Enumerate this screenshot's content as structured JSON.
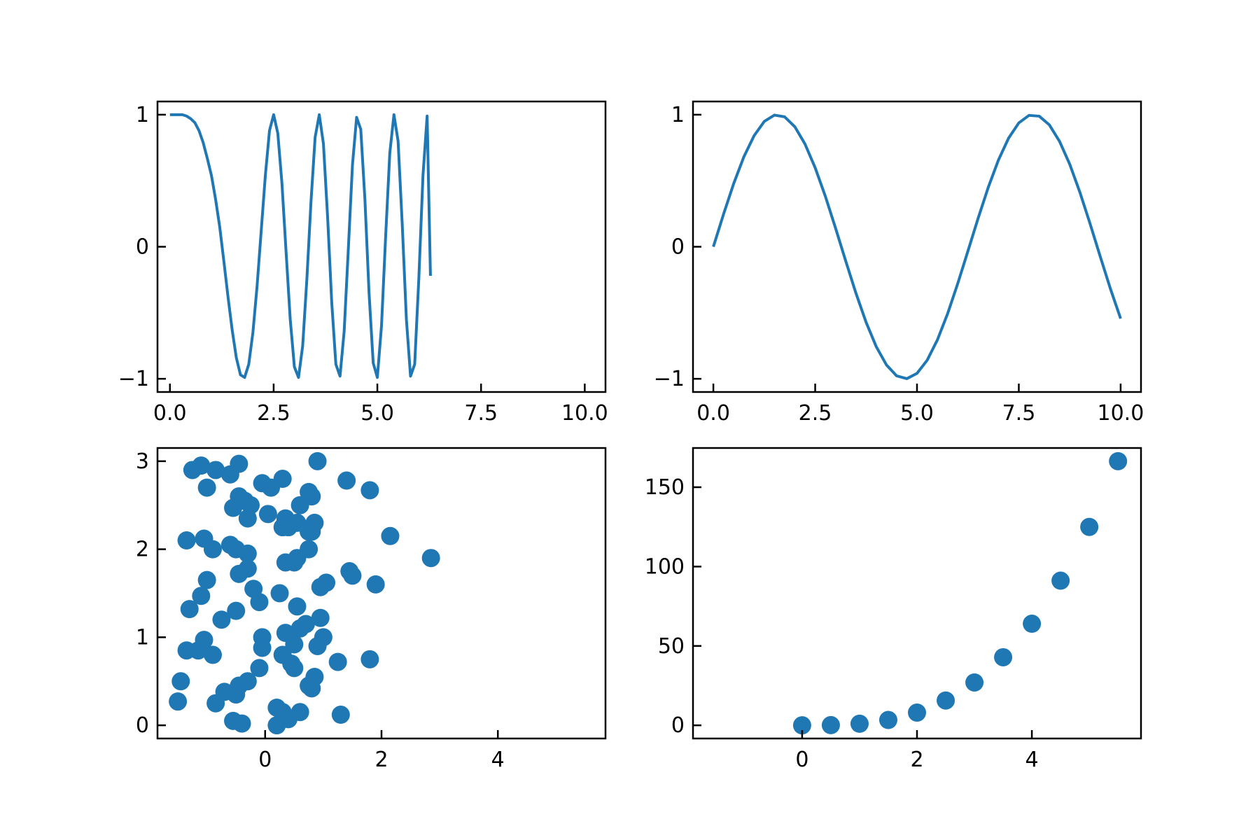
{
  "colors": {
    "series": "#1f77b4",
    "axes": "#000000",
    "background": "#ffffff"
  },
  "chart_data": [
    {
      "type": "line",
      "name_hint": "chirp",
      "x": [
        0,
        0.1,
        0.2,
        0.3,
        0.4,
        0.5,
        0.6,
        0.7,
        0.8,
        0.9,
        1.0,
        1.1,
        1.2,
        1.3,
        1.4,
        1.5,
        1.6,
        1.7,
        1.8,
        1.9,
        2.0,
        2.1,
        2.2,
        2.3,
        2.4,
        2.5,
        2.6,
        2.7,
        2.8,
        2.9,
        3.0,
        3.1,
        3.2,
        3.3,
        3.4,
        3.5,
        3.6,
        3.7,
        3.8,
        3.9,
        4.0,
        4.1,
        4.2,
        4.3,
        4.4,
        4.5,
        4.6,
        4.7,
        4.8,
        4.9,
        5.0,
        5.1,
        5.2,
        5.3,
        5.4,
        5.5,
        5.6,
        5.7,
        5.8,
        5.9,
        6.0,
        6.1,
        6.2,
        6.28
      ],
      "y": [
        1.0,
        1.0,
        1.0,
        1.0,
        0.99,
        0.97,
        0.94,
        0.88,
        0.79,
        0.67,
        0.54,
        0.36,
        0.15,
        -0.11,
        -0.38,
        -0.63,
        -0.84,
        -0.97,
        -0.99,
        -0.89,
        -0.65,
        -0.3,
        0.12,
        0.54,
        0.88,
        1.0,
        0.86,
        0.48,
        -0.04,
        -0.55,
        -0.91,
        -0.99,
        -0.75,
        -0.25,
        0.34,
        0.83,
        1.0,
        0.78,
        0.23,
        -0.42,
        -0.89,
        -0.98,
        -0.64,
        -0.02,
        0.62,
        0.98,
        0.89,
        0.36,
        -0.35,
        -0.88,
        -0.99,
        -0.6,
        0.08,
        0.71,
        1.0,
        0.8,
        0.17,
        -0.55,
        -0.98,
        -0.89,
        -0.24,
        0.54,
        0.99,
        -0.22
      ],
      "xlim": [
        -0.3,
        10.5
      ],
      "ylim": [
        -1.1,
        1.1
      ],
      "xticks": [
        0,
        2.5,
        5,
        7.5,
        10
      ],
      "xticklabels": [
        "0.0",
        "2.5",
        "5.0",
        "7.5",
        "10.0"
      ],
      "yticks": [
        -1,
        0,
        1
      ],
      "yticklabels": [
        "−1",
        "0",
        "1"
      ],
      "grid": false
    },
    {
      "type": "line",
      "name_hint": "sine",
      "x": [
        0,
        0.25,
        0.5,
        0.75,
        1.0,
        1.25,
        1.5,
        1.75,
        2.0,
        2.25,
        2.5,
        2.75,
        3.0,
        3.25,
        3.5,
        3.75,
        4.0,
        4.25,
        4.5,
        4.75,
        5.0,
        5.25,
        5.5,
        5.75,
        6.0,
        6.25,
        6.5,
        6.75,
        7.0,
        7.25,
        7.5,
        7.75,
        8.0,
        8.25,
        8.5,
        8.75,
        9.0,
        9.25,
        9.5,
        9.75,
        10.0
      ],
      "y": [
        0,
        0.247,
        0.479,
        0.682,
        0.841,
        0.949,
        0.997,
        0.984,
        0.909,
        0.778,
        0.598,
        0.382,
        0.141,
        -0.108,
        -0.351,
        -0.572,
        -0.757,
        -0.895,
        -0.978,
        -0.999,
        -0.959,
        -0.859,
        -0.706,
        -0.508,
        -0.279,
        -0.033,
        0.215,
        0.45,
        0.657,
        0.823,
        0.938,
        0.995,
        0.989,
        0.923,
        0.798,
        0.625,
        0.412,
        0.174,
        -0.075,
        -0.319,
        -0.544
      ],
      "xlim": [
        -0.5,
        10.5
      ],
      "ylim": [
        -1.1,
        1.1
      ],
      "xticks": [
        0,
        2.5,
        5,
        7.5,
        10
      ],
      "xticklabels": [
        "0.0",
        "2.5",
        "5.0",
        "7.5",
        "10.0"
      ],
      "yticks": [
        -1,
        0,
        1
      ],
      "yticklabels": [
        "−1",
        "0",
        "1"
      ],
      "grid": false
    },
    {
      "type": "scatter",
      "x": [
        -1.25,
        -1.1,
        -0.85,
        -0.6,
        -0.45,
        -0.35,
        -0.05,
        0.1,
        0.3,
        0.35,
        0.6,
        0.8,
        0.9,
        1.4,
        1.8,
        -1.0,
        -0.55,
        0.05,
        0.4,
        0.55,
        0.75,
        -0.25,
        -0.45,
        -0.3,
        0.3,
        0.75,
        0.85,
        0.8,
        2.15,
        -1.35,
        -1.05,
        -0.9,
        -0.6,
        -0.5,
        -0.3,
        0.35,
        0.55,
        0.75,
        0.5,
        2.85,
        -1.0,
        -1.1,
        -1.3,
        -0.45,
        -0.3,
        0.25,
        -0.2,
        -0.1,
        0.95,
        1.05,
        1.45,
        1.5,
        1.9,
        -0.75,
        -0.5,
        0.55,
        0.6,
        0.7,
        0.35,
        0.5,
        0.95,
        -1.15,
        -1.35,
        -0.9,
        -0.05,
        -0.05,
        0.3,
        0.45,
        0.5,
        1.0,
        0.9,
        1.25,
        1.8,
        -0.1,
        -0.3,
        -0.45,
        -0.7,
        -1.45,
        -1.5,
        -0.85,
        0.8,
        0.85,
        0.75,
        -0.5,
        -0.55,
        0.2,
        0.3,
        0.6,
        1.3,
        0.2,
        0.4,
        -0.4,
        -1.05
      ],
      "y": [
        2.9,
        2.95,
        2.9,
        2.85,
        2.97,
        2.55,
        2.75,
        2.7,
        2.8,
        2.35,
        2.5,
        2.6,
        3.0,
        2.78,
        2.67,
        2.7,
        2.47,
        2.4,
        2.25,
        2.3,
        2.65,
        2.5,
        2.6,
        2.35,
        2.25,
        2.2,
        2.3,
        2.2,
        2.15,
        2.1,
        2.12,
        2.0,
        2.05,
        2.0,
        1.95,
        1.85,
        1.9,
        2.0,
        1.85,
        1.9,
        1.65,
        1.47,
        1.32,
        1.72,
        1.78,
        1.5,
        1.55,
        1.4,
        1.57,
        1.62,
        1.75,
        1.7,
        1.6,
        1.2,
        1.3,
        1.35,
        1.1,
        1.15,
        1.05,
        0.92,
        1.22,
        0.85,
        0.85,
        0.8,
        1.0,
        0.88,
        0.8,
        0.7,
        0.65,
        1.0,
        0.9,
        0.72,
        0.75,
        0.65,
        0.5,
        0.45,
        0.38,
        0.5,
        0.27,
        0.25,
        0.42,
        0.55,
        0.45,
        0.35,
        0.05,
        0.2,
        0.15,
        0.15,
        0.12,
        0.0,
        0.07,
        0.02,
        0.97
      ],
      "xlim": [
        -1.85,
        5.85
      ],
      "ylim": [
        -0.15,
        3.15
      ],
      "xticks": [
        0,
        2,
        4
      ],
      "xticklabels": [
        "0",
        "2",
        "4"
      ],
      "yticks": [
        0,
        1,
        2,
        3
      ],
      "yticklabels": [
        "0",
        "1",
        "2",
        "3"
      ],
      "grid": false
    },
    {
      "type": "scatter",
      "x": [
        0,
        0.5,
        1.0,
        1.5,
        2.0,
        2.5,
        3.0,
        3.5,
        4.0,
        4.5,
        5.0,
        5.5
      ],
      "y": [
        0,
        0.125,
        1.0,
        3.375,
        8.0,
        15.625,
        27.0,
        42.875,
        64.0,
        91.125,
        125.0,
        166.375
      ],
      "xlim": [
        -1.9,
        5.9
      ],
      "ylim": [
        -8.3,
        174.7
      ],
      "xticks": [
        0,
        2,
        4
      ],
      "xticklabels": [
        "0",
        "2",
        "4"
      ],
      "yticks": [
        0,
        50,
        100,
        150
      ],
      "yticklabels": [
        "0",
        "50",
        "100",
        "150"
      ],
      "grid": false
    }
  ]
}
